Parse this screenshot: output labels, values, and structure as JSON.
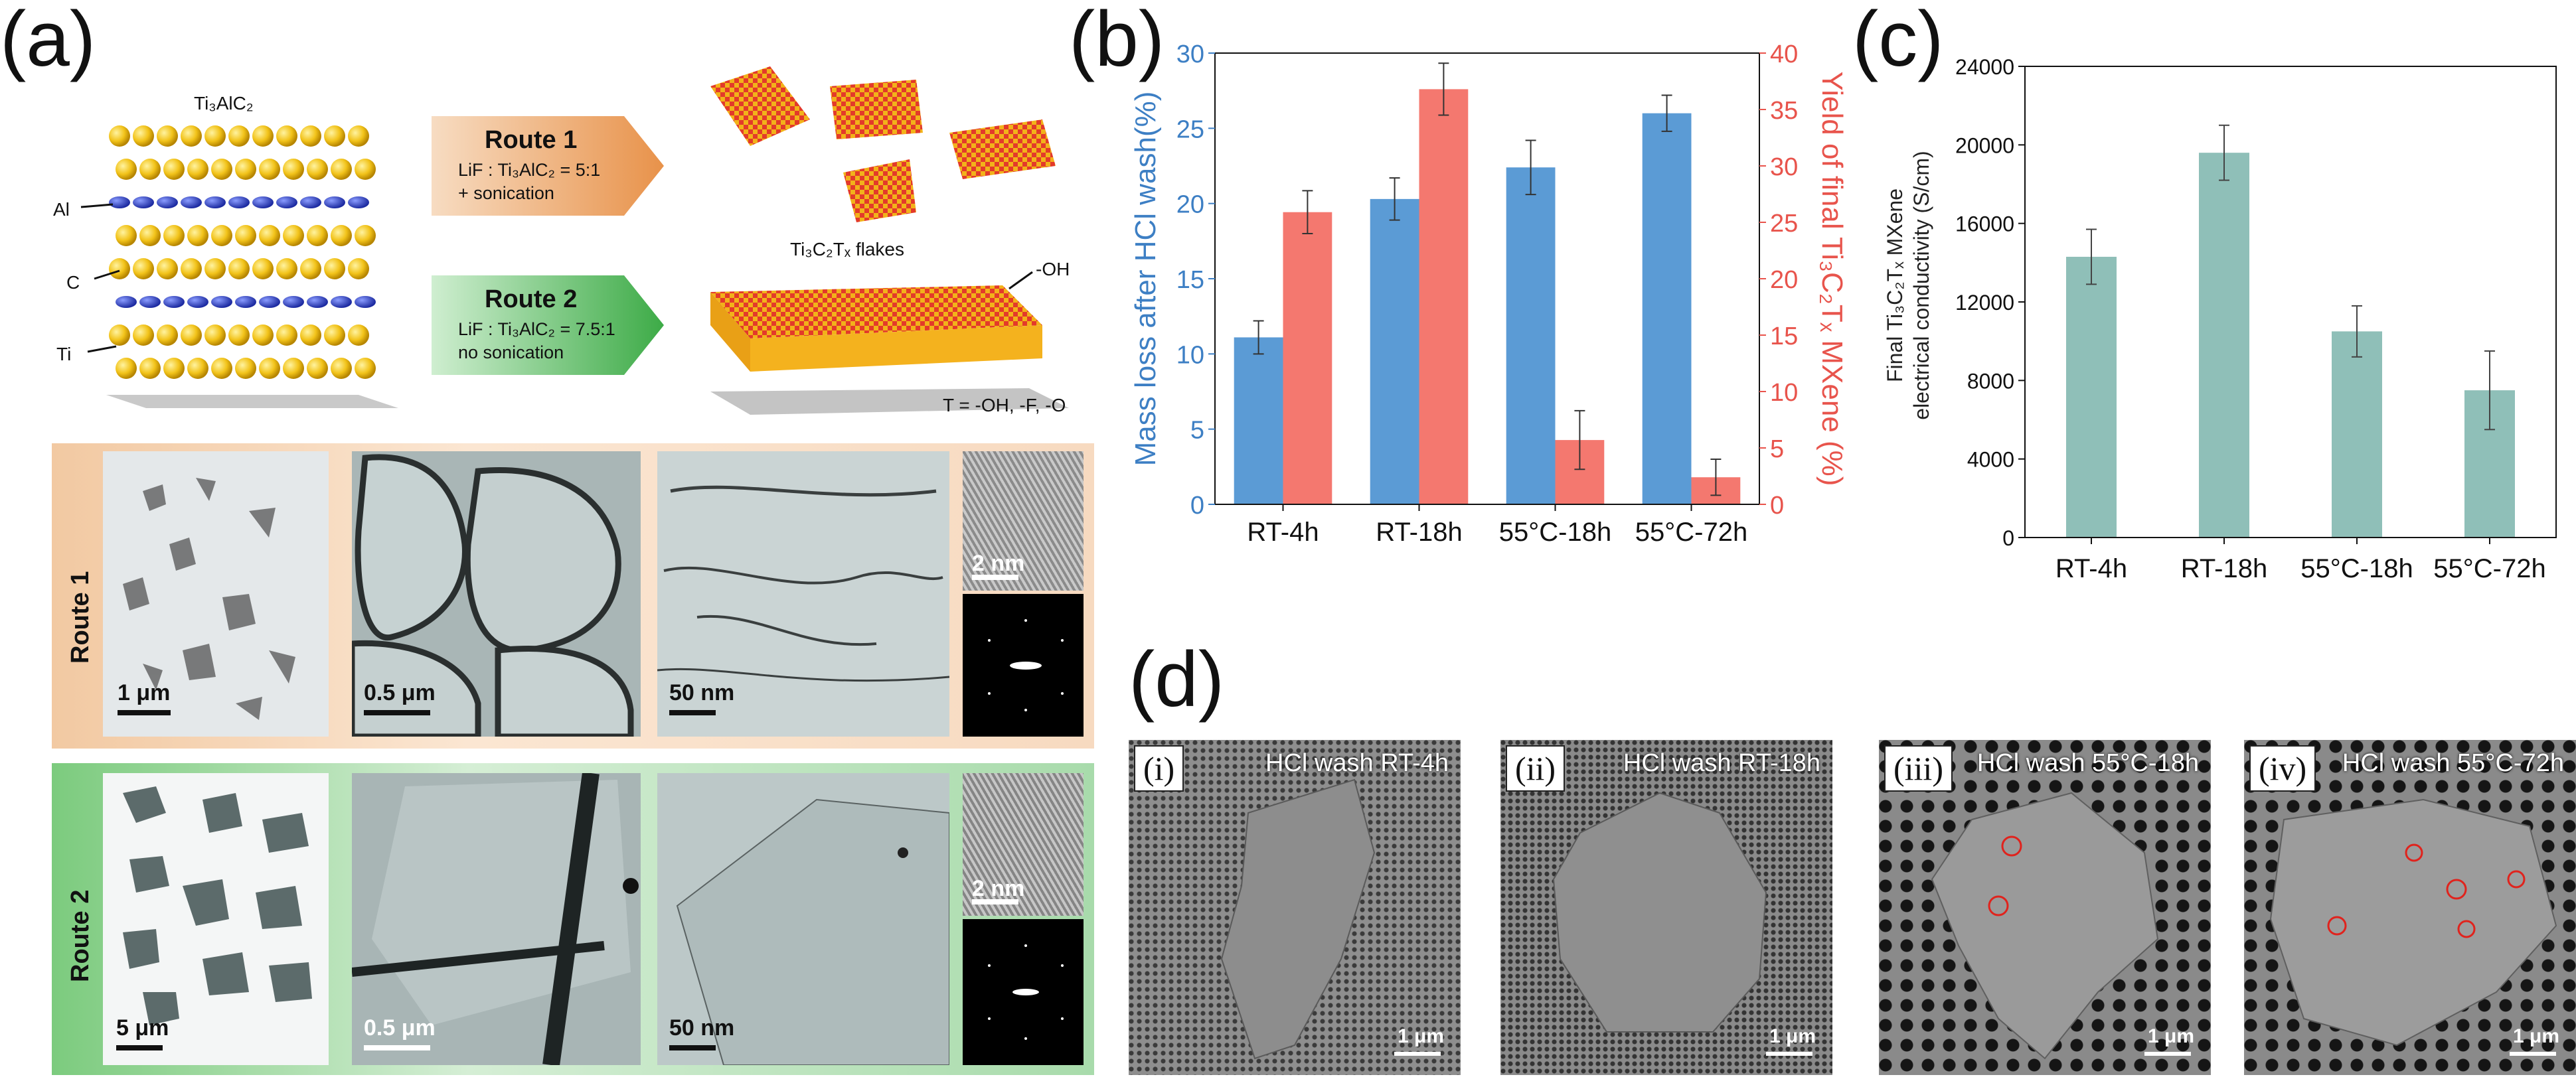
{
  "panel_a": {
    "letter": "(a)",
    "ti3alc2_label": "Ti₃AlC₂",
    "layer_labels": [
      "Al",
      "C",
      "Ti"
    ],
    "route1": {
      "title": "Route 1",
      "line1": "LiF : Ti₃AlC₂ = 5:1",
      "line2": "+ sonication"
    },
    "route2": {
      "title": "Route 2",
      "line1": "LiF : Ti₃AlC₂ = 7.5:1",
      "line2": "no sonication"
    },
    "flakes_label": "Ti₃C₂Tₓ flakes",
    "oh_label": "-OH",
    "termination": "T = -OH, -F, -O",
    "row1_label": "Route 1",
    "row2_label": "Route 2",
    "row1_scales": [
      "1 μm",
      "0.5 μm",
      "50 nm",
      "2 nm"
    ],
    "row2_scales": [
      "5 μm",
      "0.5 μm",
      "50 nm",
      "2 nm"
    ]
  },
  "panel_d": {
    "letter": "(d)",
    "images": [
      {
        "roman": "(i)",
        "label": "HCl wash RT-4h",
        "scale": "1 μm"
      },
      {
        "roman": "(ii)",
        "label": "HCl wash RT-18h",
        "scale": "1 μm"
      },
      {
        "roman": "(iii)",
        "label": "HCl wash 55°C-18h",
        "scale": "1 μm"
      },
      {
        "roman": "(iv)",
        "label": "HCl wash 55°C-72h",
        "scale": "1 μm"
      }
    ]
  },
  "colors": {
    "blue": "#5b9bd5",
    "salmon": "#f4786f",
    "teal": "#8fbfb8",
    "red_axis": "#e8544c",
    "blue_axis": "#3d7fc4"
  },
  "chart_data": [
    {
      "panel": "(b)",
      "type": "bar",
      "categories": [
        "RT-4h",
        "RT-18h",
        "55°C-18h",
        "55°C-72h"
      ],
      "series": [
        {
          "name": "",
          "axis": "left",
          "color": "#5b9bd5",
          "values": [
            11.1,
            20.3,
            22.4,
            26.0
          ],
          "errors": [
            1.1,
            1.4,
            1.8,
            1.2
          ]
        },
        {
          "name": "",
          "axis": "right",
          "color": "#f4786f",
          "values": [
            25.9,
            36.8,
            5.7,
            2.4
          ],
          "errors": [
            1.9,
            2.3,
            2.6,
            1.6
          ]
        }
      ],
      "ylabel": "Mass loss after HCl wash(%)",
      "y2label": "Yield of final Ti₃C₂Tₓ MXene (%)",
      "ylim": [
        0,
        30
      ],
      "y2lim": [
        0,
        40
      ],
      "yticks": [
        0,
        5,
        10,
        15,
        20,
        25,
        30
      ],
      "y2ticks": [
        0,
        5,
        10,
        15,
        20,
        25,
        30,
        35,
        40
      ]
    },
    {
      "panel": "(c)",
      "type": "bar",
      "categories": [
        "RT-4h",
        "RT-18h",
        "55°C-18h",
        "55°C-72h"
      ],
      "series": [
        {
          "name": "",
          "color": "#8fbfb8",
          "values": [
            14300,
            19600,
            10500,
            7500
          ],
          "errors": [
            1400,
            1400,
            1300,
            2000
          ]
        }
      ],
      "ylabel_line1": "Final Ti₃C₂Tₓ MXene",
      "ylabel_line2": "electrical conductivity (S/cm)",
      "ylim": [
        0,
        24000
      ],
      "yticks": [
        0,
        4000,
        8000,
        12000,
        16000,
        20000,
        24000
      ]
    }
  ]
}
